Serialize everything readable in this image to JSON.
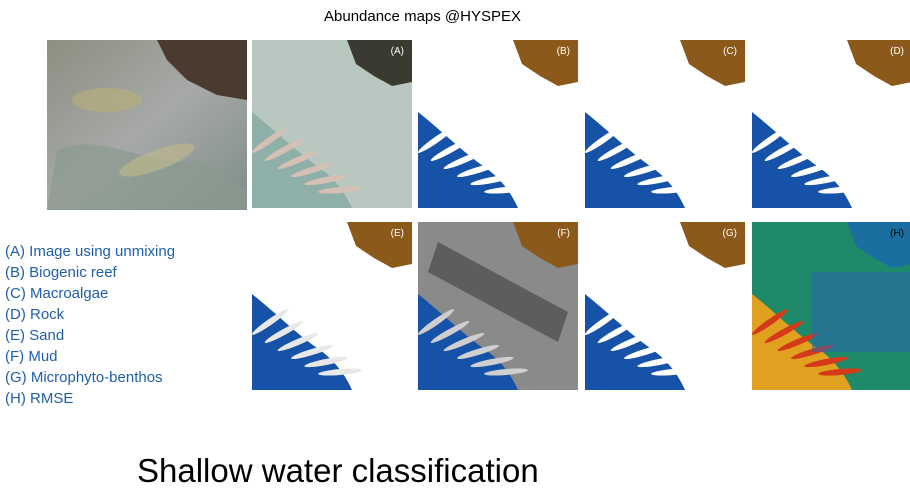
{
  "title": "Abundance maps @HYSPEX",
  "panels": [
    {
      "label": "(A)"
    },
    {
      "label": "(B)"
    },
    {
      "label": "(C)"
    },
    {
      "label": "(D)"
    },
    {
      "label": "(E)"
    },
    {
      "label": "(F)"
    },
    {
      "label": "(G)"
    },
    {
      "label": "(H)"
    }
  ],
  "legend": [
    "(A) Image using unmixing",
    "(B) Biogenic reef",
    "(C) Macroalgae",
    "(D) Rock",
    "(E) Sand",
    "(F) Mud",
    "(G) Microphyto-benthos",
    "(H) RMSE"
  ],
  "footer": "Shallow water classification"
}
